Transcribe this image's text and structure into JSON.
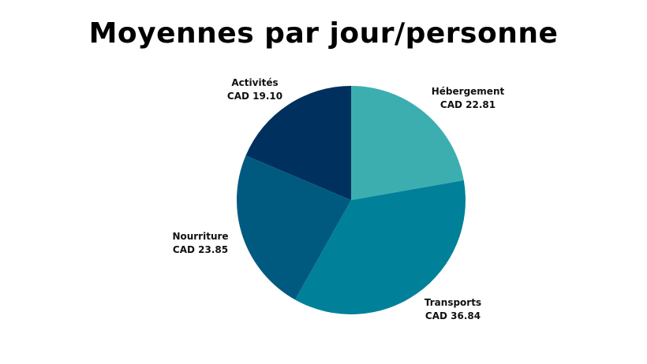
{
  "chart_data": {
    "type": "pie",
    "title": "Moyennes par jour/personne",
    "slices": [
      {
        "name": "Hébergement",
        "value": 22.81,
        "label": "CAD 22.81",
        "color": "#3daeb0"
      },
      {
        "name": "Transports",
        "value": 36.84,
        "label": "CAD 36.84",
        "color": "#008099"
      },
      {
        "name": "Nourriture",
        "value": 23.85,
        "label": "CAD 23.85",
        "color": "#005a80"
      },
      {
        "name": "Activités",
        "value": 19.1,
        "label": "CAD 19.10",
        "color": "#00305e"
      }
    ],
    "start_angle": "12 o'clock",
    "direction": "clockwise"
  }
}
